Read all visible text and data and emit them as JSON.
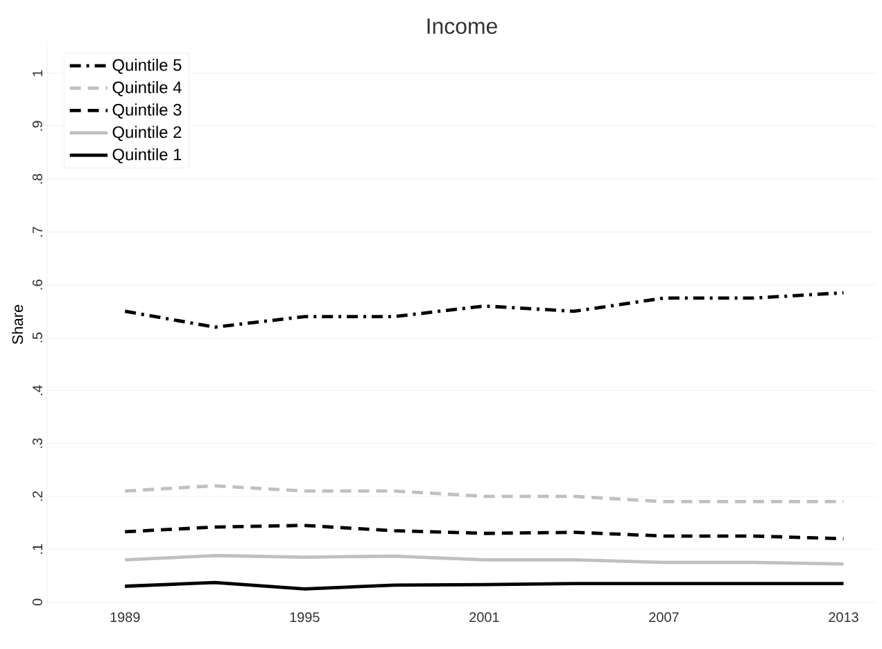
{
  "chart_data": {
    "type": "line",
    "title": "Income",
    "ylabel": "Share",
    "x": [
      1989,
      1992,
      1995,
      1998,
      2001,
      2004,
      2007,
      2010,
      2013
    ],
    "xlim": [
      1986.4,
      2014.1
    ],
    "xticks": [
      1989,
      1995,
      2001,
      2007,
      2013
    ],
    "ylim": [
      -0.01,
      1.06
    ],
    "yticks": [
      0,
      {
        "value": 0.1,
        "label": ".1"
      },
      {
        "value": 0.2,
        "label": ".2"
      },
      {
        "value": 0.3,
        "label": ".3"
      },
      {
        "value": 0.4,
        "label": ".4"
      },
      {
        "value": 0.5,
        "label": ".5"
      },
      {
        "value": 0.6,
        "label": ".6"
      },
      {
        "value": 0.7,
        "label": ".7"
      },
      {
        "value": 0.8,
        "label": ".8"
      },
      {
        "value": 0.9,
        "label": ".9"
      },
      1
    ],
    "grid": "y",
    "legend": "top left",
    "marker": "none",
    "series": [
      {
        "name": "Quintile 5",
        "color": "#000000",
        "line_style": "dashdot",
        "values": [
          0.55,
          0.52,
          0.54,
          0.54,
          0.56,
          0.55,
          0.575,
          0.575,
          0.585
        ]
      },
      {
        "name": "Quintile 4",
        "color": "#c0c0c0",
        "line_style": "dashed",
        "values": [
          0.21,
          0.22,
          0.21,
          0.21,
          0.2,
          0.2,
          0.19,
          0.19,
          0.19
        ]
      },
      {
        "name": "Quintile 3",
        "color": "#000000",
        "line_style": "dashed",
        "values": [
          0.133,
          0.142,
          0.145,
          0.135,
          0.13,
          0.132,
          0.125,
          0.125,
          0.12
        ]
      },
      {
        "name": "Quintile 2",
        "color": "#c0c0c0",
        "line_style": "solid",
        "values": [
          0.08,
          0.088,
          0.085,
          0.087,
          0.08,
          0.08,
          0.075,
          0.075,
          0.072
        ]
      },
      {
        "name": "Quintile 1",
        "color": "#000000",
        "line_style": "solid",
        "values": [
          0.03,
          0.037,
          0.025,
          0.032,
          0.033,
          0.035,
          0.035,
          0.035,
          0.035
        ]
      }
    ]
  }
}
